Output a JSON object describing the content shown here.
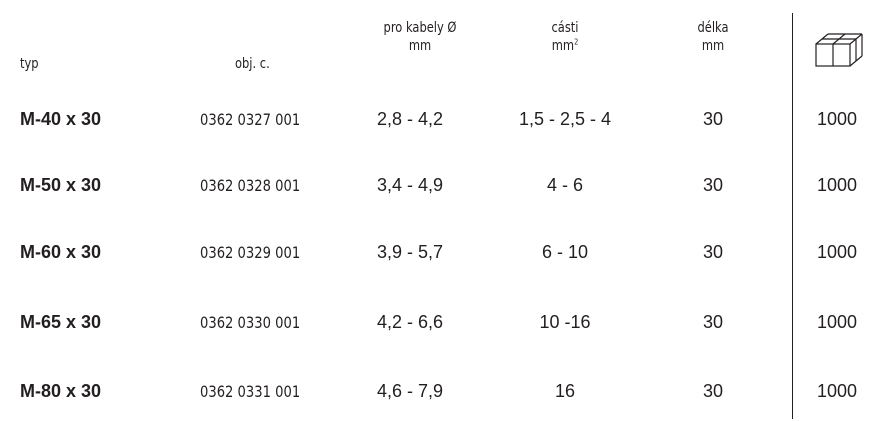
{
  "header": {
    "typ": "typ",
    "obj": "obj. c.",
    "kabely_line1": "pro kabely Ø",
    "kabely_line2": "mm",
    "casti_line1": "cásti",
    "casti_line2_main": "mm",
    "casti_line2_sup": "2",
    "delka_line1": "délka",
    "delka_line2": "mm",
    "package_icon": "box-icon"
  },
  "rows": [
    {
      "typ": "M-40 x 30",
      "obj": "0362 0327 001",
      "kabely": "2,8 - 4,2",
      "casti": "1,5 - 2,5 - 4",
      "delka": "30",
      "qty": "1000"
    },
    {
      "typ": "M-50 x 30",
      "obj": "0362 0328 001",
      "kabely": "3,4 - 4,9",
      "casti": "4 - 6",
      "delka": "30",
      "qty": "1000"
    },
    {
      "typ": "M-60 x 30",
      "obj": "0362 0329 001",
      "kabely": "3,9 - 5,7",
      "casti": "6 - 10",
      "delka": "30",
      "qty": "1000"
    },
    {
      "typ": "M-65 x 30",
      "obj": "0362 0330 001",
      "kabely": "4,2 - 6,6",
      "casti": "10 -16",
      "delka": "30",
      "qty": "1000"
    },
    {
      "typ": "M-80 x 30",
      "obj": "0362 0331 001",
      "kabely": "4,6 - 7,9",
      "casti": "16",
      "delka": "30",
      "qty": "1000"
    }
  ]
}
